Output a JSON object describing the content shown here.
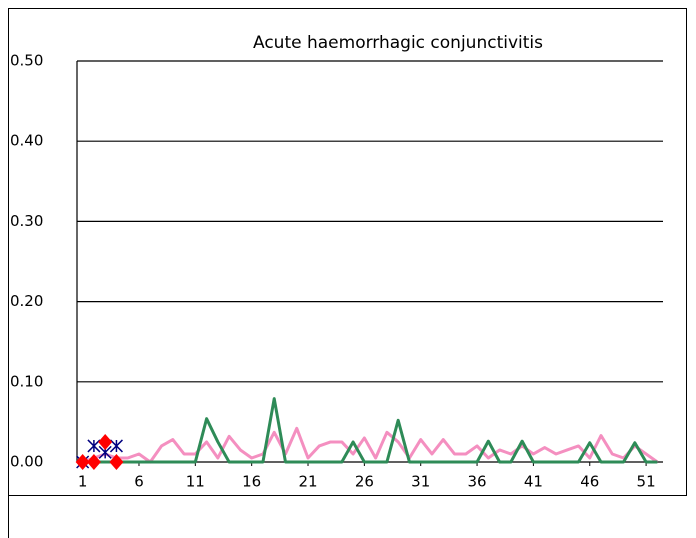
{
  "chart_data": {
    "type": "line",
    "title": "Acute haemorrhagic conjunctivitis",
    "x": [
      1,
      2,
      3,
      4,
      5,
      6,
      7,
      8,
      9,
      10,
      11,
      12,
      13,
      14,
      15,
      16,
      17,
      18,
      19,
      20,
      21,
      22,
      23,
      24,
      25,
      26,
      27,
      28,
      29,
      30,
      31,
      32,
      33,
      34,
      35,
      36,
      37,
      38,
      39,
      40,
      41,
      42,
      43,
      44,
      45,
      46,
      47,
      48,
      49,
      50,
      51,
      52
    ],
    "series": [
      {
        "color": "#f48fc0",
        "marker": "none",
        "x": [
          1,
          2,
          3,
          4,
          5,
          6,
          7,
          8,
          9,
          10,
          11,
          12,
          13,
          14,
          15,
          16,
          17,
          18,
          19,
          20,
          21,
          22,
          23,
          24,
          25,
          26,
          27,
          28,
          29,
          30,
          31,
          32,
          33,
          34,
          35,
          36,
          37,
          38,
          39,
          40,
          41,
          42,
          43,
          44,
          45,
          46,
          47,
          48,
          49,
          50,
          51,
          52
        ],
        "values": [
          0,
          0.005,
          0.01,
          0.005,
          0.005,
          0.01,
          0,
          0.02,
          0.028,
          0.01,
          0.01,
          0.025,
          0.005,
          0.032,
          0.015,
          0.005,
          0.01,
          0.037,
          0.01,
          0.042,
          0.005,
          0.02,
          0.025,
          0.025,
          0.01,
          0.03,
          0.005,
          0.037,
          0.025,
          0.005,
          0.028,
          0.01,
          0.028,
          0.01,
          0.01,
          0.02,
          0.005,
          0.015,
          0.01,
          0.02,
          0.01,
          0.018,
          0.01,
          0.015,
          0.02,
          0.005,
          0.033,
          0.01,
          0.005,
          0.02,
          0.01,
          0
        ]
      },
      {
        "color": "#2e8b57",
        "marker": "none",
        "x": [
          1,
          2,
          3,
          4,
          5,
          6,
          7,
          8,
          9,
          10,
          11,
          12,
          13,
          14,
          15,
          16,
          17,
          18,
          19,
          20,
          21,
          22,
          23,
          24,
          25,
          26,
          27,
          28,
          29,
          30,
          31,
          32,
          33,
          34,
          35,
          36,
          37,
          38,
          39,
          40,
          41,
          42,
          43,
          44,
          45,
          46,
          47,
          48,
          49,
          50,
          51,
          52
        ],
        "values": [
          0,
          0,
          0,
          0,
          0,
          0,
          0,
          0,
          0,
          0,
          0,
          0.054,
          0.025,
          0,
          0,
          0,
          0,
          0.079,
          0,
          0,
          0,
          0,
          0,
          0,
          0.025,
          0,
          0,
          0,
          0.052,
          0,
          0,
          0,
          0,
          0,
          0,
          0,
          0.026,
          0,
          0,
          0.026,
          0,
          0,
          0,
          0,
          0,
          0.024,
          0,
          0,
          0,
          0.024,
          0,
          0
        ]
      },
      {
        "color": "#000080",
        "marker": "asterisk",
        "x": [
          1,
          2,
          3,
          4
        ],
        "values": [
          0,
          0.02,
          0.012,
          0.02
        ]
      },
      {
        "color": "#ff0000",
        "marker": "diamond",
        "x": [
          1,
          2,
          3,
          4
        ],
        "values": [
          0,
          0,
          0.025,
          0
        ]
      }
    ],
    "xlim": [
      0.5,
      52.5
    ],
    "xticks": [
      1,
      6,
      11,
      16,
      21,
      26,
      31,
      36,
      41,
      46,
      51
    ],
    "ylim": [
      0,
      0.5
    ],
    "yticks": [
      {
        "value": 0,
        "label": "0.00"
      },
      {
        "value": 0.1,
        "label": "0.10"
      },
      {
        "value": 0.2,
        "label": "0.20"
      },
      {
        "value": 0.3,
        "label": "0.30"
      },
      {
        "value": 0.4,
        "label": "0.40"
      },
      {
        "value": 0.5,
        "label": "0.50"
      }
    ],
    "grid": true
  }
}
